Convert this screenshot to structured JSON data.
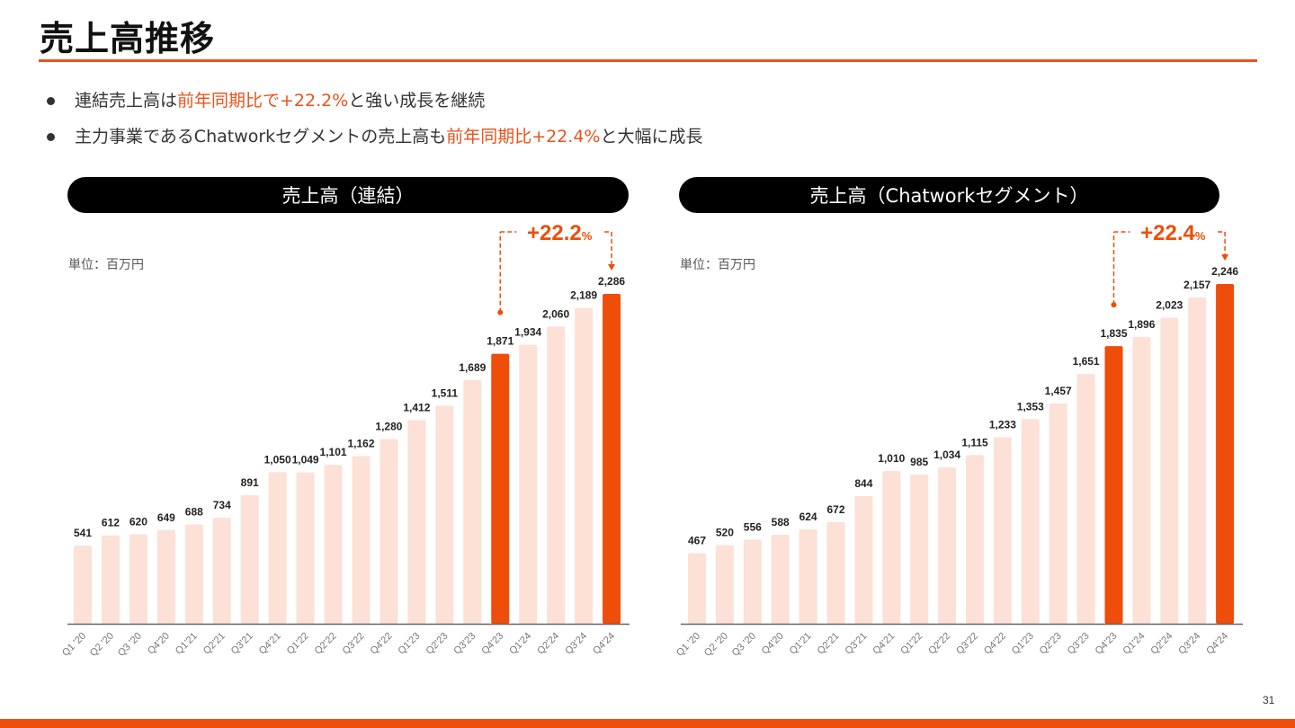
{
  "page": {
    "title": "売上高推移",
    "page_number": "31",
    "accent_color": "#ef4d0a",
    "bullets": [
      {
        "parts": [
          {
            "text": "連結売上高は",
            "hl": false
          },
          {
            "text": "前年同期比で+22.2%",
            "hl": true
          },
          {
            "text": "と強い成長を継続",
            "hl": false
          }
        ]
      },
      {
        "parts": [
          {
            "text": "主力事業であるChatworkセグメントの売上高も",
            "hl": false
          },
          {
            "text": "前年同期比+22.4%",
            "hl": true
          },
          {
            "text": "と大幅に成長",
            "hl": false
          }
        ]
      }
    ]
  },
  "chart_data": [
    {
      "type": "bar",
      "title": "売上高（連結）",
      "unit_label": "単位：百万円",
      "xlabel": "",
      "ylabel": "",
      "categories": [
        "Q1 '20",
        "Q2 '20",
        "Q3 '20",
        "Q4'20",
        "Q1'21",
        "Q2'21",
        "Q3'21",
        "Q4'21",
        "Q1'22",
        "Q2'22",
        "Q3'22",
        "Q4'22",
        "Q1'23",
        "Q2'23",
        "Q3'23",
        "Q4'23",
        "Q1'24",
        "Q2'24",
        "Q3'24",
        "Q4'24"
      ],
      "values": [
        541,
        612,
        620,
        649,
        688,
        734,
        891,
        1050,
        1049,
        1101,
        1162,
        1280,
        1412,
        1511,
        1689,
        1871,
        1934,
        2060,
        2189,
        2286
      ],
      "value_labels": [
        "541",
        "612",
        "620",
        "649",
        "688",
        "734",
        "891",
        "1,050",
        "1,049",
        "1,101",
        "1,162",
        "1,280",
        "1,412",
        "1,511",
        "1,689",
        "1,871",
        "1,934",
        "2,060",
        "2,189",
        "2,286"
      ],
      "highlight_indices": [
        15,
        19
      ],
      "bar_color": "#fde0d6",
      "highlight_color": "#ef4d0a",
      "ylim": [
        0,
        2286
      ],
      "grid": false,
      "annotation": {
        "from_index": 15,
        "to_index": 19,
        "value": "+22.2",
        "suffix": "%"
      }
    },
    {
      "type": "bar",
      "title": "売上高（Chatworkセグメント）",
      "unit_label": "単位：百万円",
      "xlabel": "",
      "ylabel": "",
      "categories": [
        "Q1 '20",
        "Q2 '20",
        "Q3 '20",
        "Q4'20",
        "Q1'21",
        "Q2'21",
        "Q3'21",
        "Q4'21",
        "Q1'22",
        "Q2'22",
        "Q3'22",
        "Q4'22",
        "Q1'23",
        "Q2'23",
        "Q3'23",
        "Q4'23",
        "Q1'24",
        "Q2'24",
        "Q3'24",
        "Q4'24"
      ],
      "values": [
        467,
        520,
        556,
        588,
        624,
        672,
        844,
        1010,
        985,
        1034,
        1115,
        1233,
        1353,
        1457,
        1651,
        1835,
        1896,
        2023,
        2157,
        2246
      ],
      "value_labels": [
        "467",
        "520",
        "556",
        "588",
        "624",
        "672",
        "844",
        "1,010",
        "985",
        "1,034",
        "1,115",
        "1,233",
        "1,353",
        "1,457",
        "1,651",
        "1,835",
        "1,896",
        "2,023",
        "2,157",
        "2,246"
      ],
      "highlight_indices": [
        15,
        19
      ],
      "bar_color": "#fde0d6",
      "highlight_color": "#ef4d0a",
      "ylim": [
        0,
        2246
      ],
      "grid": false,
      "annotation": {
        "from_index": 15,
        "to_index": 19,
        "value": "+22.4",
        "suffix": "%"
      }
    }
  ]
}
